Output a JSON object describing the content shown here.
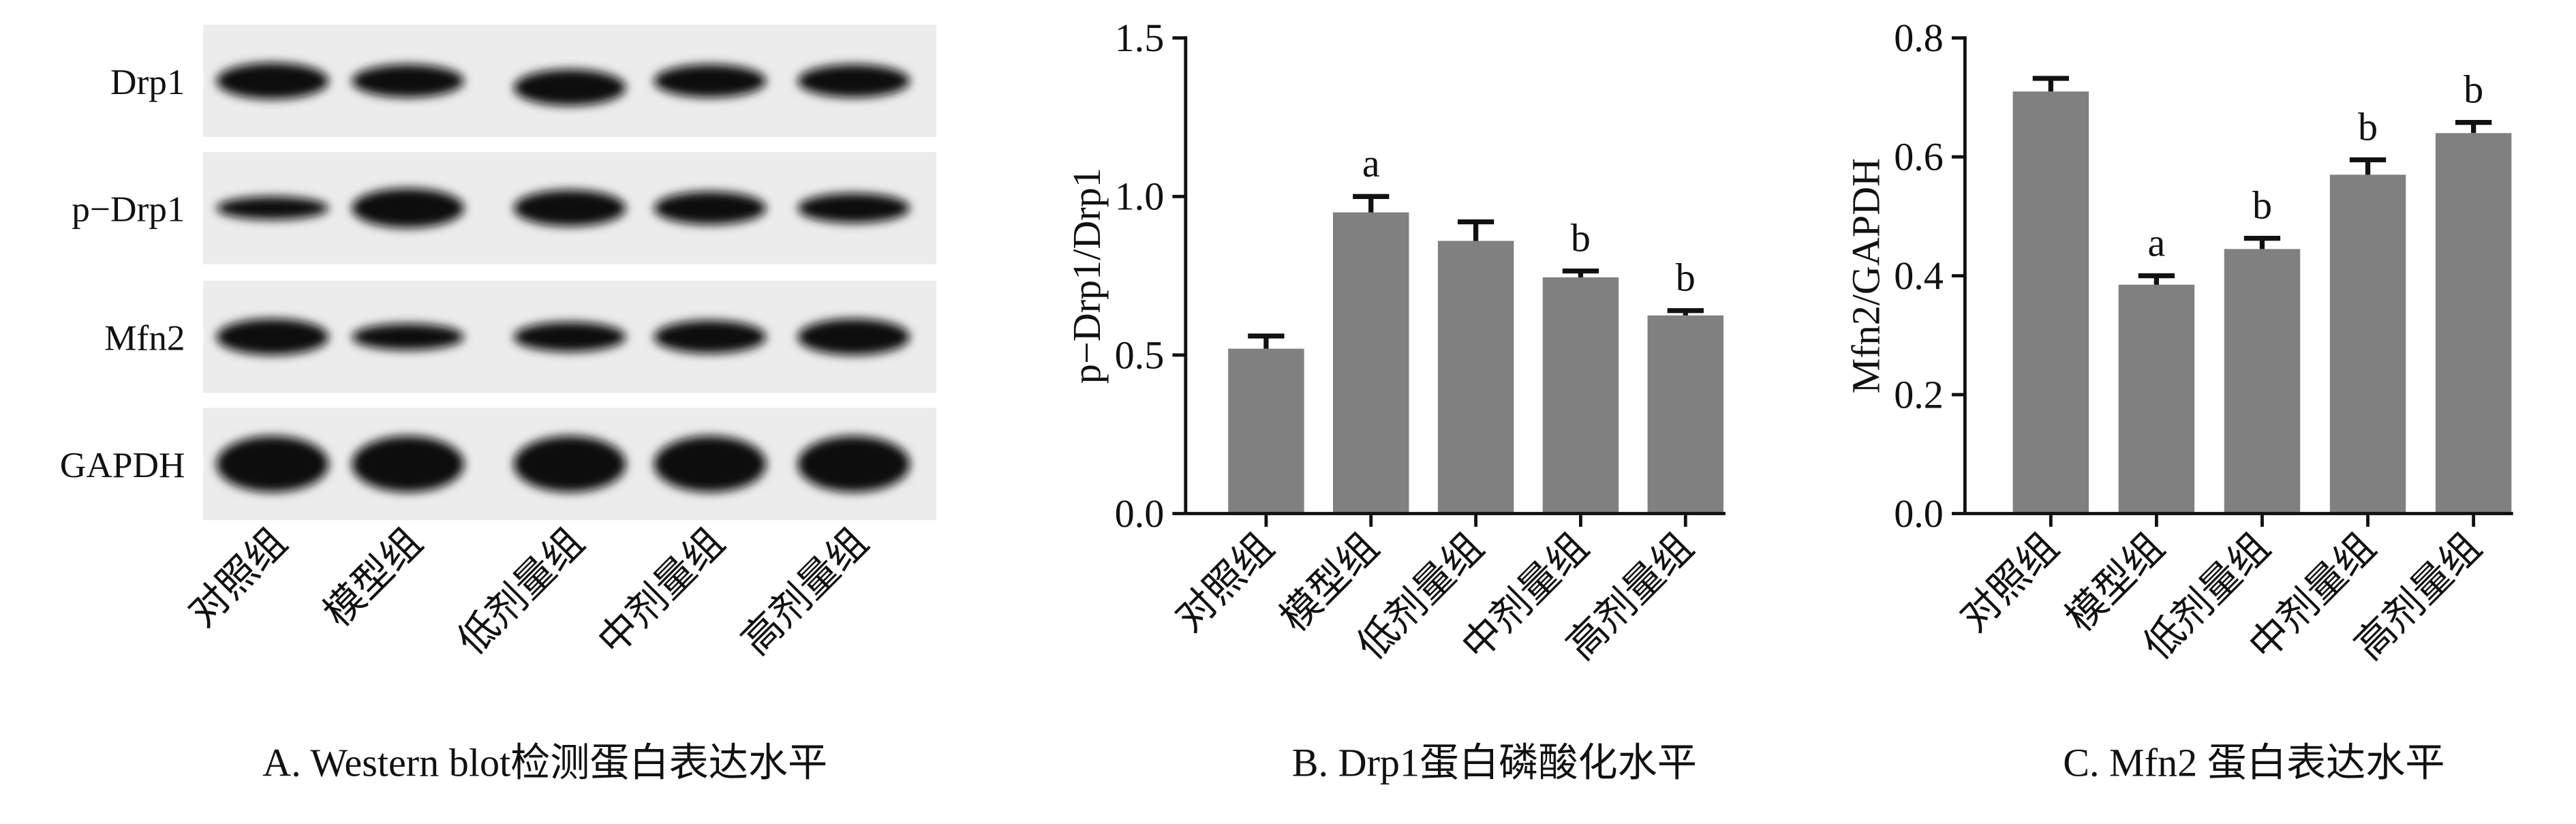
{
  "blot": {
    "rows": [
      "Drp1",
      "p−Drp1",
      "Mfn2",
      "GAPDH"
    ],
    "categories": [
      "对照组",
      "模型组",
      "低剂量组",
      "中剂量组",
      "高剂量组"
    ],
    "caption": "A. Western blot检测蛋白表达水平"
  },
  "chart_data": [
    {
      "type": "bar",
      "ylabel": "p−Drp1/Drp1",
      "caption": "B. Drp1蛋白磷酸化水平",
      "categories": [
        "对照组",
        "模型组",
        "低剂量组",
        "中剂量组",
        "高剂量组"
      ],
      "values": [
        0.52,
        0.95,
        0.86,
        0.745,
        0.625
      ],
      "errors": [
        0.04,
        0.05,
        0.06,
        0.02,
        0.015
      ],
      "annotations": [
        null,
        "a",
        null,
        "b",
        "b"
      ],
      "color": "#808080",
      "ylim": [
        0,
        1.5
      ],
      "yticks": [
        {
          "value": 0,
          "label": "0.0"
        },
        {
          "value": 0.5,
          "label": "0.5"
        },
        {
          "value": 1,
          "label": "1.0"
        },
        {
          "value": 1.5,
          "label": "1.5"
        }
      ]
    },
    {
      "type": "bar",
      "ylabel": "Mfn2/GAPDH",
      "caption": "C. Mfn2 蛋白表达水平",
      "categories": [
        "对照组",
        "模型组",
        "低剂量组",
        "中剂量组",
        "高剂量组"
      ],
      "values": [
        0.71,
        0.385,
        0.445,
        0.57,
        0.64
      ],
      "errors": [
        0.022,
        0.015,
        0.018,
        0.025,
        0.018
      ],
      "annotations": [
        null,
        "a",
        "b",
        "b",
        "b"
      ],
      "color": "#808080",
      "ylim": [
        0,
        0.8
      ],
      "yticks": [
        {
          "value": 0,
          "label": "0.0"
        },
        {
          "value": 0.2,
          "label": "0.2"
        },
        {
          "value": 0.4,
          "label": "0.4"
        },
        {
          "value": 0.6,
          "label": "0.6"
        },
        {
          "value": 0.8,
          "label": "0.8"
        }
      ]
    }
  ]
}
